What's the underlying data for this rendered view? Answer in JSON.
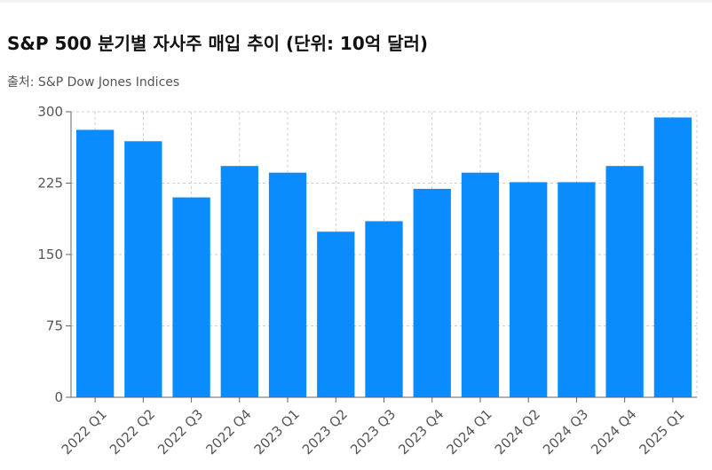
{
  "header": {
    "title": "S&P 500 분기별 자사주 매입 추이 (단위: 10억 달러)",
    "source": "출처: S&P Dow Jones Indices"
  },
  "colors": {
    "bar": "#0a8cff",
    "grid": "#cfcfcf",
    "axis": "#666666"
  },
  "chart_data": {
    "type": "bar",
    "title": "S&P 500 분기별 자사주 매입 추이 (단위: 10억 달러)",
    "xlabel": "",
    "ylabel": "",
    "categories": [
      "2022 Q1",
      "2022 Q2",
      "2022 Q3",
      "2022 Q4",
      "2023 Q1",
      "2023 Q2",
      "2023 Q3",
      "2023 Q4",
      "2024 Q1",
      "2024 Q2",
      "2024 Q3",
      "2024 Q4",
      "2025 Q1"
    ],
    "values": [
      281,
      269,
      210,
      243,
      236,
      174,
      185,
      219,
      236,
      226,
      226,
      243,
      294
    ],
    "ylim": [
      0,
      300
    ],
    "yticks": [
      0,
      75,
      150,
      225,
      300
    ],
    "grid": true,
    "legend": "none"
  }
}
